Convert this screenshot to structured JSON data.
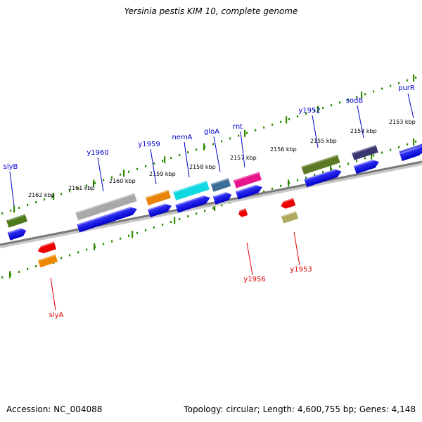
{
  "title": "Yersinia pestis KIM 10, complete genome",
  "footer": {
    "accession": "Accession: NC_004088",
    "summary": "Topology: circular; Length: 4,600,755 bp; Genes: 4,148"
  },
  "colors": {
    "backbone": "#7a7a7a",
    "tick": "#2e8b00",
    "cds": "#0000ee",
    "label_forward": "#0000cc",
    "label_reverse": "#dd0000",
    "kbp_text": "#000000"
  },
  "kbp_labels": [
    "2153 kbp",
    "2154 kbp",
    "2155 kbp",
    "2156 kbp",
    "2157 kbp",
    "2158 kbp",
    "2159 kbp",
    "2160 kbp",
    "2161 kbp",
    "2162 kbp"
  ],
  "forward_genes": [
    {
      "name": "purR"
    },
    {
      "name": "sodB"
    },
    {
      "name": "y1952"
    },
    {
      "name": "rnt"
    },
    {
      "name": "gloA"
    },
    {
      "name": "nemA"
    },
    {
      "name": "y1959"
    },
    {
      "name": "y1960"
    },
    {
      "name": "slyB"
    }
  ],
  "reverse_genes": [
    {
      "name": "y1953"
    },
    {
      "name": "y1956"
    },
    {
      "name": "slyA"
    }
  ]
}
